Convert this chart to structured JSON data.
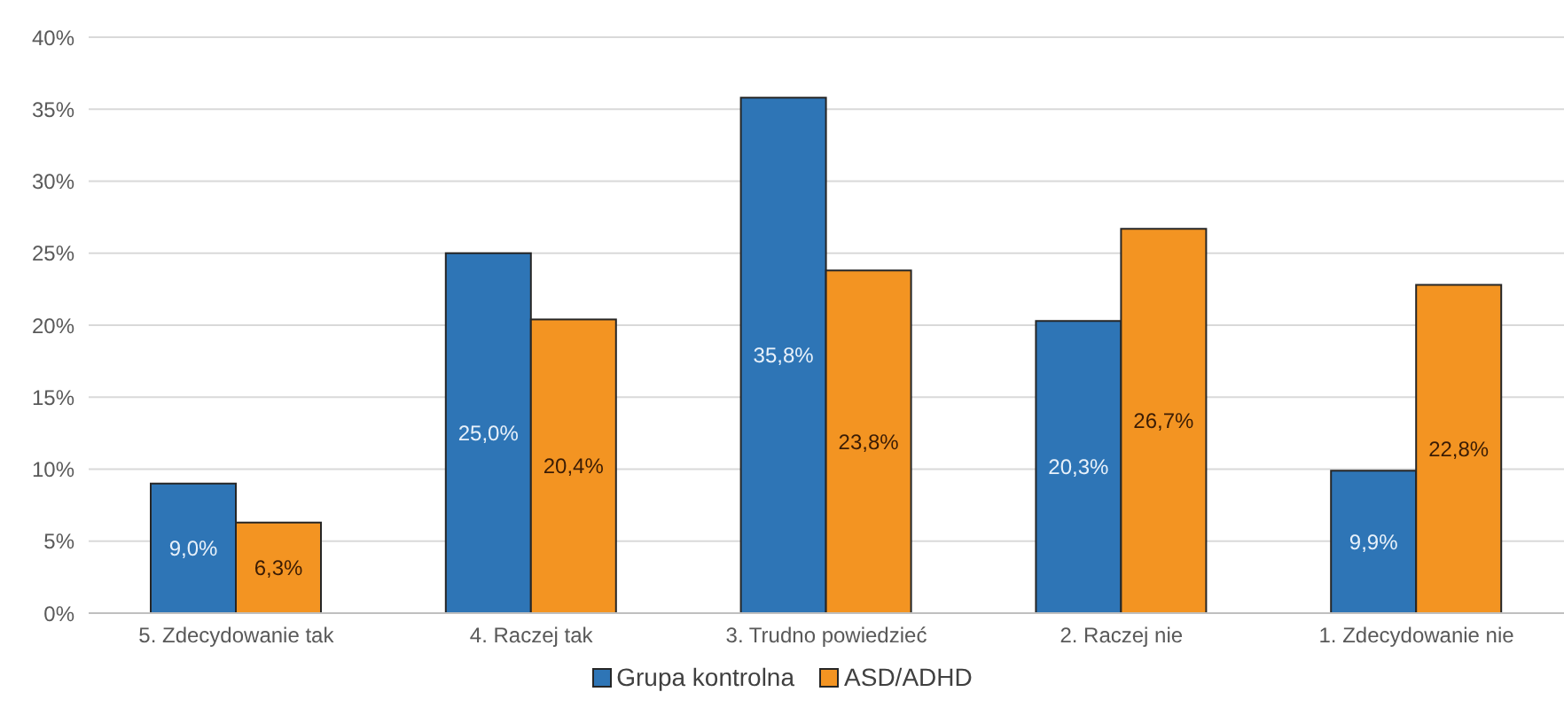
{
  "chart_data": {
    "type": "bar",
    "categories": [
      "5. Zdecydowanie tak",
      "4. Raczej tak",
      "3. Trudno powiedzieć",
      "2. Raczej nie",
      "1. Zdecydowanie nie"
    ],
    "series": [
      {
        "name": "Grupa kontrolna",
        "color": "#2e75b6",
        "values": [
          9.0,
          25.0,
          35.8,
          20.3,
          9.9
        ],
        "value_labels": [
          "9,0%",
          "25,0%",
          "35,8%",
          "20,3%",
          "9,9%"
        ]
      },
      {
        "name": "ASD/ADHD",
        "color": "#f39422",
        "values": [
          6.3,
          20.4,
          23.8,
          26.7,
          22.8
        ],
        "value_labels": [
          "6,3%",
          "20,4%",
          "23,8%",
          "26,7%",
          "22,8%"
        ]
      }
    ],
    "ylim": [
      0,
      40
    ],
    "yticks": [
      {
        "value": 0,
        "label": "0%"
      },
      {
        "value": 5,
        "label": "5%"
      },
      {
        "value": 10,
        "label": "10%"
      },
      {
        "value": 15,
        "label": "15%"
      },
      {
        "value": 20,
        "label": "20%"
      },
      {
        "value": 25,
        "label": "25%"
      },
      {
        "value": 30,
        "label": "30%"
      },
      {
        "value": 35,
        "label": "35%"
      },
      {
        "value": 40,
        "label": "40%"
      }
    ],
    "grid": "y",
    "legend": "bottom"
  }
}
